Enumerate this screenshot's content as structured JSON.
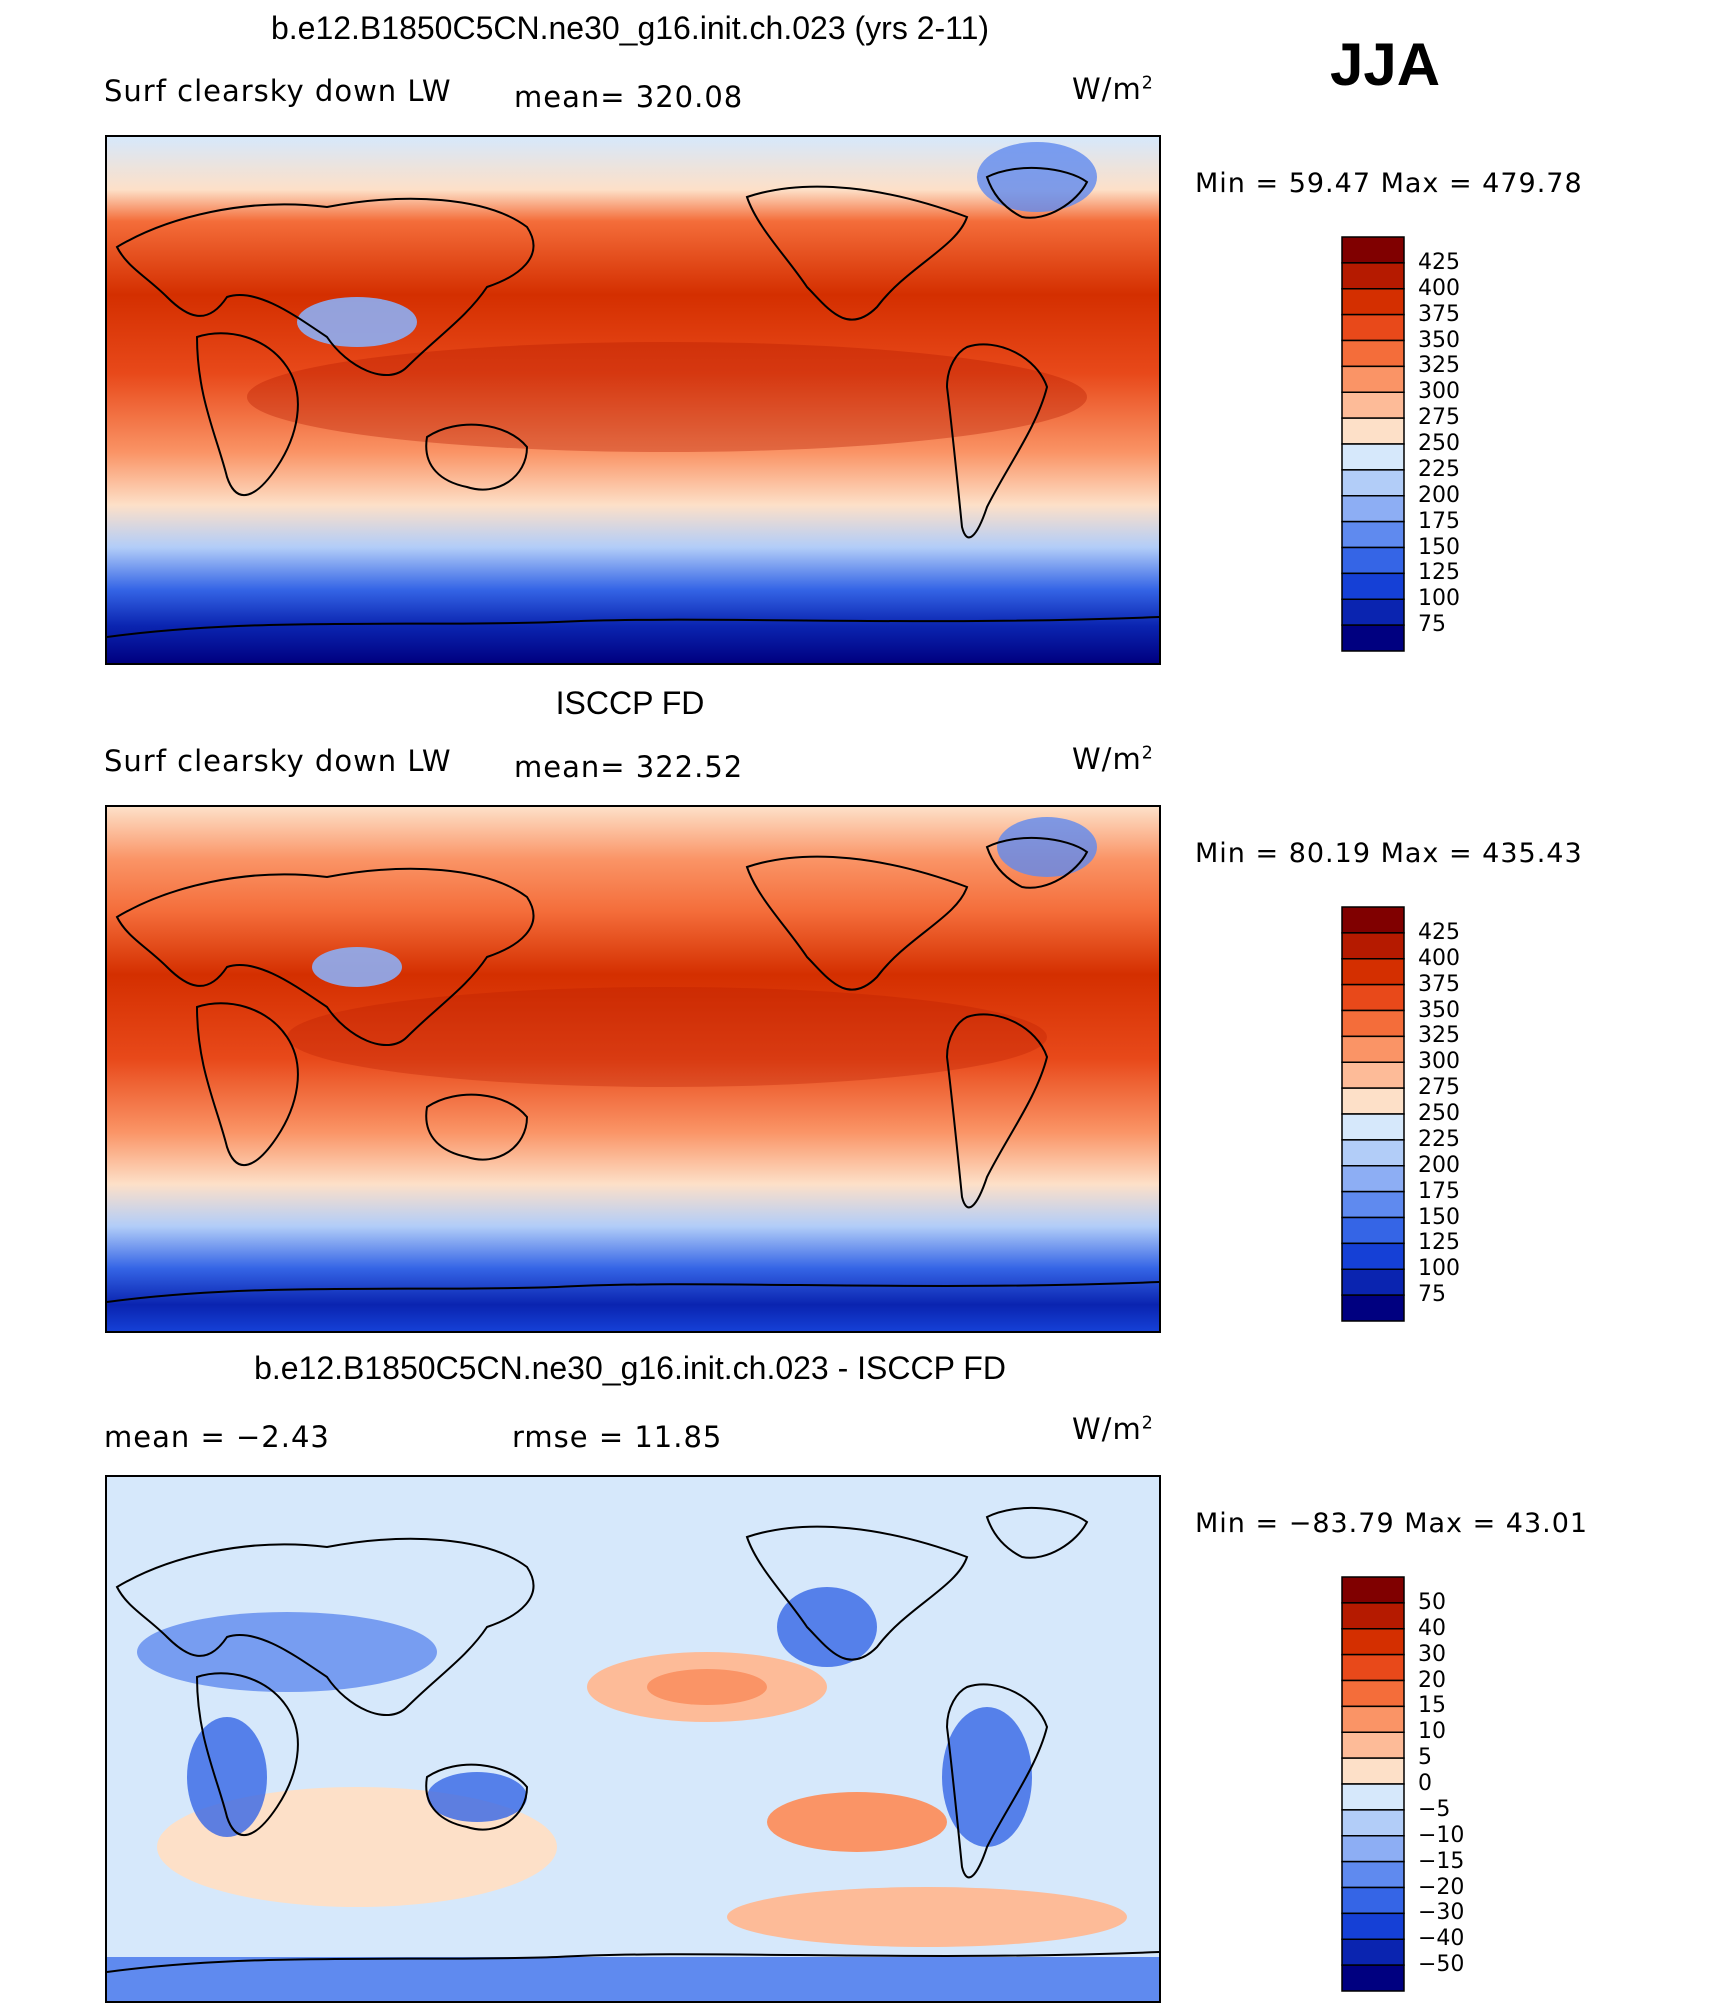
{
  "season": "JJA",
  "units_main": "W/m",
  "units_sup": "2",
  "panels": [
    {
      "title": "b.e12.B1850C5CN.ne30_g16.init.ch.023 (yrs 2-11)",
      "variable": "Surf clearsky down LW",
      "stat1": "mean=  320.08",
      "minmax": "Min =   59.47  Max  =  479.78",
      "levels": [
        "425",
        "400",
        "375",
        "350",
        "325",
        "300",
        "275",
        "250",
        "225",
        "200",
        "175",
        "150",
        "125",
        "100",
        "75"
      ],
      "colors": [
        "#800000",
        "#b51a00",
        "#d42f00",
        "#e8491a",
        "#f46d3a",
        "#fa9466",
        "#fdbb98",
        "#fde0c8",
        "#d6e8fb",
        "#b2cdf8",
        "#8daef4",
        "#5f8aef",
        "#3565e6",
        "#1540d6",
        "#0a24b0",
        "#000080"
      ]
    },
    {
      "title": "ISCCP FD",
      "variable": "Surf clearsky down LW",
      "stat1": "mean=  322.52",
      "minmax": "Min =   80.19  Max  =  435.43",
      "levels": [
        "425",
        "400",
        "375",
        "350",
        "325",
        "300",
        "275",
        "250",
        "225",
        "200",
        "175",
        "150",
        "125",
        "100",
        "75"
      ],
      "colors": [
        "#800000",
        "#b51a00",
        "#d42f00",
        "#e8491a",
        "#f46d3a",
        "#fa9466",
        "#fdbb98",
        "#fde0c8",
        "#d6e8fb",
        "#b2cdf8",
        "#8daef4",
        "#5f8aef",
        "#3565e6",
        "#1540d6",
        "#0a24b0",
        "#000080"
      ]
    },
    {
      "title": "b.e12.B1850C5CN.ne30_g16.init.ch.023 - ISCCP FD",
      "stat1": "mean =    −2.43",
      "stat2": "rmse =    11.85",
      "minmax": "Min = −83.79  Max =    43.01",
      "levels": [
        "50",
        "40",
        "30",
        "20",
        "15",
        "10",
        "5",
        "0",
        "−5",
        "−10",
        "−15",
        "−20",
        "−30",
        "−40",
        "−50"
      ],
      "colors": [
        "#800000",
        "#b51a00",
        "#d42f00",
        "#e8491a",
        "#f46d3a",
        "#fa9466",
        "#fdbb98",
        "#fde0c8",
        "#d6e8fb",
        "#b2cdf8",
        "#8daef4",
        "#5f8aef",
        "#3565e6",
        "#1540d6",
        "#0a24b0",
        "#000080"
      ]
    }
  ]
}
